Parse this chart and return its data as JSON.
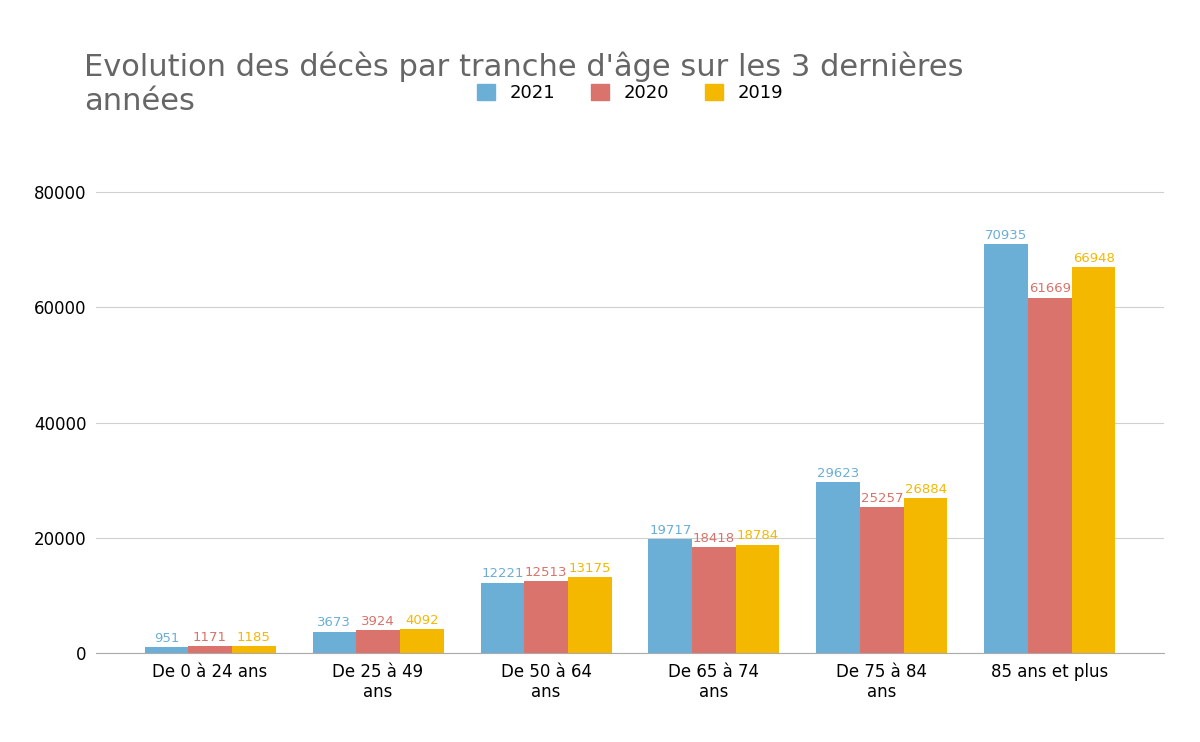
{
  "title": "Evolution des décès par tranche d'âge sur les 3 dernières\nannées",
  "categories": [
    "De 0 à 24 ans",
    "De 25 à 49\nans",
    "De 50 à 64\nans",
    "De 65 à 74\nans",
    "De 75 à 84\nans",
    "85 ans et plus"
  ],
  "series": {
    "2021": [
      951,
      3673,
      12221,
      19717,
      29623,
      70935
    ],
    "2020": [
      1171,
      3924,
      12513,
      18418,
      25257,
      61669
    ],
    "2019": [
      1185,
      4092,
      13175,
      18784,
      26884,
      66948
    ]
  },
  "bar_colors": {
    "2021": "#6BAED6",
    "2020": "#D9736B",
    "2019": "#F5B800"
  },
  "label_colors": {
    "2021": "#6BAED6",
    "2020": "#D9736B",
    "2019": "#F5B800"
  },
  "legend_order": [
    "2021",
    "2020",
    "2019"
  ],
  "ylim": [
    0,
    85000
  ],
  "yticks": [
    0,
    20000,
    40000,
    60000,
    80000
  ],
  "bar_width": 0.26,
  "background_color": "#ffffff",
  "title_color": "#666666",
  "title_fontsize": 22,
  "label_fontsize": 9.5,
  "tick_fontsize": 12,
  "legend_fontsize": 13
}
